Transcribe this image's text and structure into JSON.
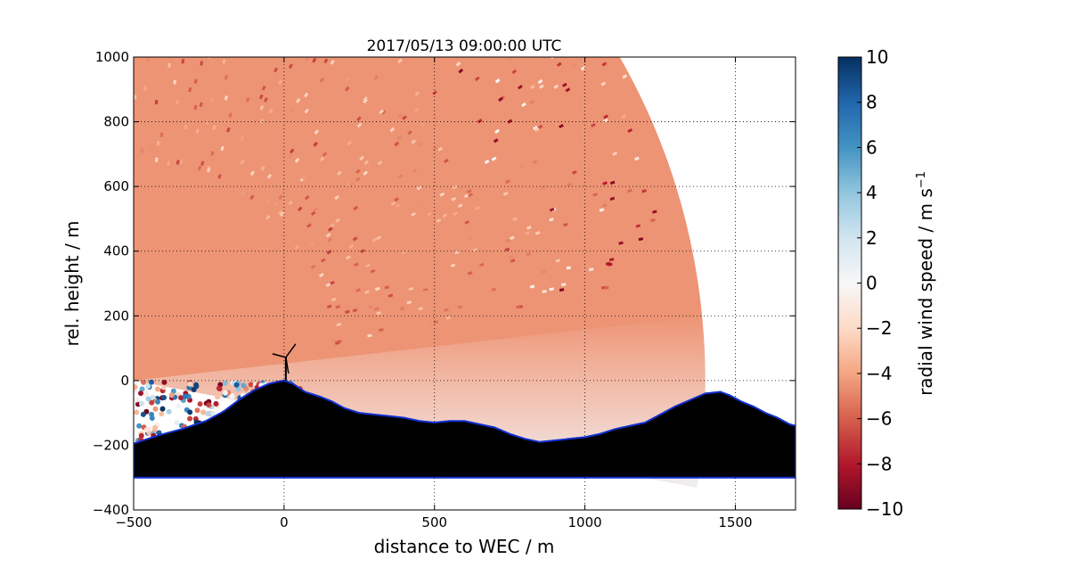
{
  "chart_data": {
    "type": "heatmap",
    "title": "2017/05/13 09:00:00 UTC",
    "xlabel": "distance to WEC / m",
    "ylabel": "rel. height / m",
    "xlim": [
      -500,
      1700
    ],
    "ylim": [
      -400,
      1000
    ],
    "xticks": [
      -500,
      0,
      500,
      1000,
      1500
    ],
    "yticks": [
      -400,
      -200,
      0,
      200,
      400,
      600,
      800,
      1000
    ],
    "xtick_labels": [
      "−500",
      "0",
      "500",
      "1000",
      "1500"
    ],
    "ytick_labels": [
      "−400",
      "−200",
      "0",
      "200",
      "400",
      "600",
      "800",
      "1000"
    ],
    "grid": true,
    "colormap": "RdBu",
    "colorbar": {
      "label": "radial wind speed / m s",
      "label_superscript": "−1",
      "range": [
        -10,
        10
      ],
      "ticks": [
        -10,
        -8,
        -6,
        -4,
        -2,
        0,
        2,
        4,
        6,
        8,
        10
      ],
      "tick_labels": [
        "−10",
        "−8",
        "−6",
        "−4",
        "−2",
        "0",
        "2",
        "4",
        "6",
        "8",
        "10"
      ]
    },
    "scan": {
      "origin": [
        -500,
        0
      ],
      "max_range_m": 1900,
      "elevation_deg": [
        -10,
        90
      ],
      "typical_value": -4.5,
      "near_ground_value": -1
    },
    "wec_position": [
      0,
      0
    ],
    "terrain_profile": {
      "x": [
        -500,
        -420,
        -340,
        -260,
        -200,
        -150,
        -100,
        -50,
        -20,
        0,
        30,
        70,
        120,
        160,
        200,
        250,
        300,
        350,
        400,
        450,
        500,
        550,
        600,
        650,
        700,
        750,
        800,
        850,
        900,
        950,
        1000,
        1050,
        1100,
        1150,
        1200,
        1250,
        1300,
        1350,
        1400,
        1450,
        1480,
        1520,
        1560,
        1600,
        1640,
        1680,
        1700
      ],
      "y": [
        -195,
        -170,
        -150,
        -125,
        -95,
        -60,
        -30,
        -10,
        -3,
        0,
        -10,
        -35,
        -50,
        -65,
        -85,
        -100,
        -105,
        -110,
        -115,
        -125,
        -130,
        -125,
        -125,
        -135,
        -145,
        -165,
        -180,
        -190,
        -185,
        -180,
        -175,
        -165,
        -150,
        -140,
        -130,
        -105,
        -80,
        -60,
        -40,
        -35,
        -45,
        -65,
        -80,
        -100,
        -115,
        -135,
        -140
      ],
      "floor": -300
    }
  }
}
